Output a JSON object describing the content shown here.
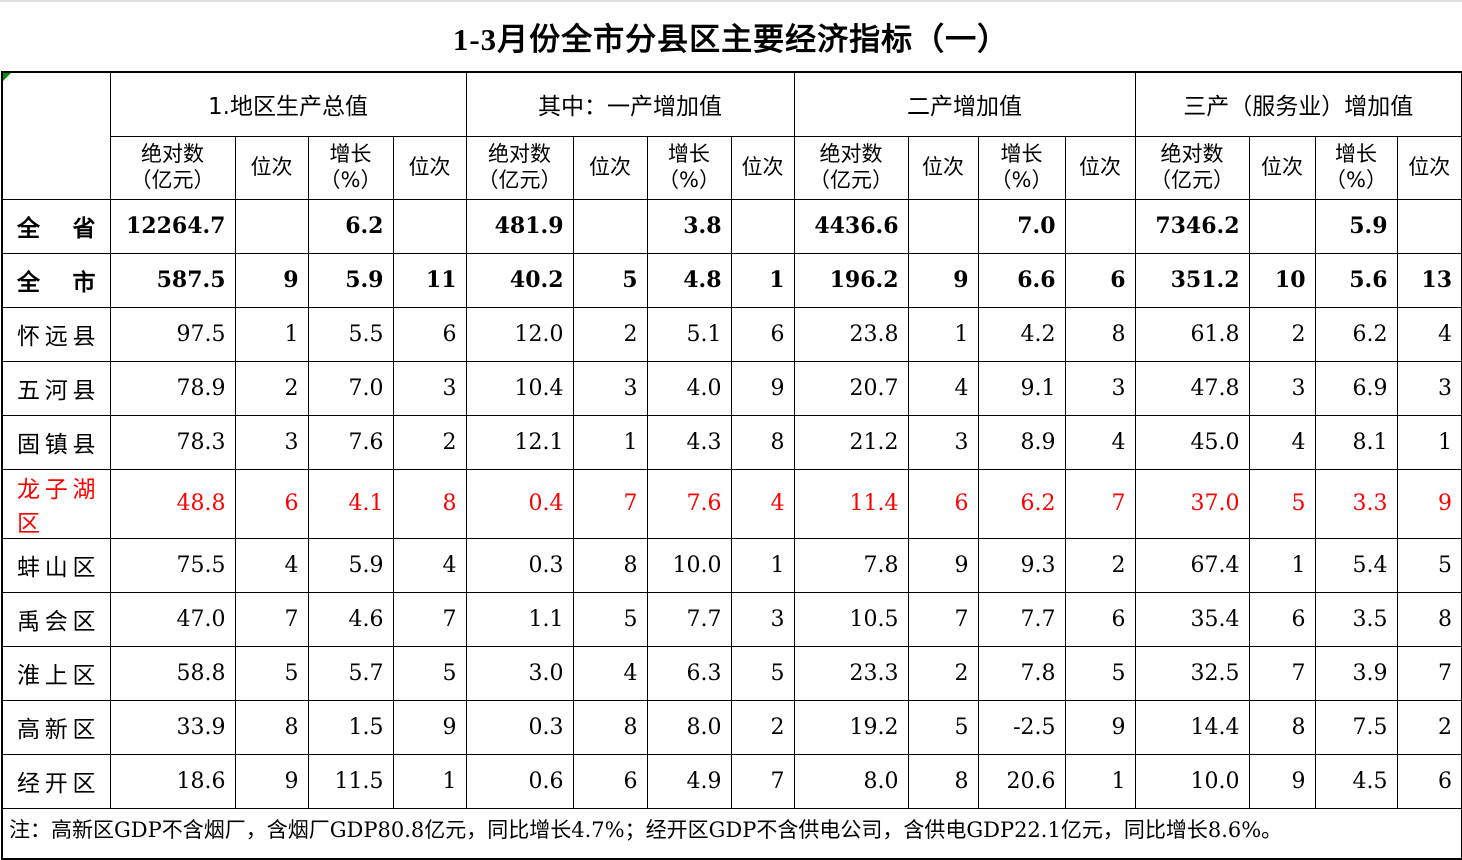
{
  "title": "1-3月份全市分县区主要经济指标（一）",
  "colors": {
    "highlight_row_text": "#ff0000",
    "grid_line": "#000000",
    "cell_error_marker_green": "#0a8a12"
  },
  "table": {
    "groups": [
      {
        "label": "1.地区生产总值"
      },
      {
        "label": "其中：一产增加值"
      },
      {
        "label": "二产增加值"
      },
      {
        "label": "三产（服务业）增加值"
      }
    ],
    "sub_headers": {
      "abs": "绝对数\n（亿元）",
      "rank": "位次",
      "growth": "增长\n（%）"
    },
    "rows": [
      {
        "name": "全省",
        "bold": true,
        "red": false,
        "values": [
          "12264.7",
          "",
          "6.2",
          "",
          "481.9",
          "",
          "3.8",
          "",
          "4436.6",
          "",
          "7.0",
          "",
          "7346.2",
          "",
          "5.9",
          ""
        ]
      },
      {
        "name": "全市",
        "bold": true,
        "red": false,
        "values": [
          "587.5",
          "9",
          "5.9",
          "11",
          "40.2",
          "5",
          "4.8",
          "1",
          "196.2",
          "9",
          "6.6",
          "6",
          "351.2",
          "10",
          "5.6",
          "13"
        ]
      },
      {
        "name": "怀远县",
        "bold": false,
        "red": false,
        "values": [
          "97.5",
          "1",
          "5.5",
          "6",
          "12.0",
          "2",
          "5.1",
          "6",
          "23.8",
          "1",
          "4.2",
          "8",
          "61.8",
          "2",
          "6.2",
          "4"
        ]
      },
      {
        "name": "五河县",
        "bold": false,
        "red": false,
        "values": [
          "78.9",
          "2",
          "7.0",
          "3",
          "10.4",
          "3",
          "4.0",
          "9",
          "20.7",
          "4",
          "9.1",
          "3",
          "47.8",
          "3",
          "6.9",
          "3"
        ]
      },
      {
        "name": "固镇县",
        "bold": false,
        "red": false,
        "values": [
          "78.3",
          "3",
          "7.6",
          "2",
          "12.1",
          "1",
          "4.3",
          "8",
          "21.2",
          "3",
          "8.9",
          "4",
          "45.0",
          "4",
          "8.1",
          "1"
        ]
      },
      {
        "name": "龙子湖区",
        "bold": false,
        "red": true,
        "values": [
          "48.8",
          "6",
          "4.1",
          "8",
          "0.4",
          "7",
          "7.6",
          "4",
          "11.4",
          "6",
          "6.2",
          "7",
          "37.0",
          "5",
          "3.3",
          "9"
        ]
      },
      {
        "name": "蚌山区",
        "bold": false,
        "red": false,
        "values": [
          "75.5",
          "4",
          "5.9",
          "4",
          "0.3",
          "8",
          "10.0",
          "1",
          "7.8",
          "9",
          "9.3",
          "2",
          "67.4",
          "1",
          "5.4",
          "5"
        ]
      },
      {
        "name": "禹会区",
        "bold": false,
        "red": false,
        "values": [
          "47.0",
          "7",
          "4.6",
          "7",
          "1.1",
          "5",
          "7.7",
          "3",
          "10.5",
          "7",
          "7.7",
          "6",
          "35.4",
          "6",
          "3.5",
          "8"
        ]
      },
      {
        "name": "淮上区",
        "bold": false,
        "red": false,
        "values": [
          "58.8",
          "5",
          "5.7",
          "5",
          "3.0",
          "4",
          "6.3",
          "5",
          "23.3",
          "2",
          "7.8",
          "5",
          "32.5",
          "7",
          "3.9",
          "7"
        ]
      },
      {
        "name": "高新区",
        "bold": false,
        "red": false,
        "values": [
          "33.9",
          "8",
          "1.5",
          "9",
          "0.3",
          "8",
          "8.0",
          "2",
          "19.2",
          "5",
          "-2.5",
          "9",
          "14.4",
          "8",
          "7.5",
          "2"
        ]
      },
      {
        "name": "经开区",
        "bold": false,
        "red": false,
        "values": [
          "18.6",
          "9",
          "11.5",
          "1",
          "0.6",
          "6",
          "4.9",
          "7",
          "8.0",
          "8",
          "20.6",
          "1",
          "10.0",
          "9",
          "4.5",
          "6"
        ]
      }
    ],
    "note": "注：高新区GDP不含烟厂，含烟厂GDP80.8亿元，同比增长4.7%；经开区GDP不含供电公司，含供电GDP22.1亿元，同比增长8.6%。"
  }
}
